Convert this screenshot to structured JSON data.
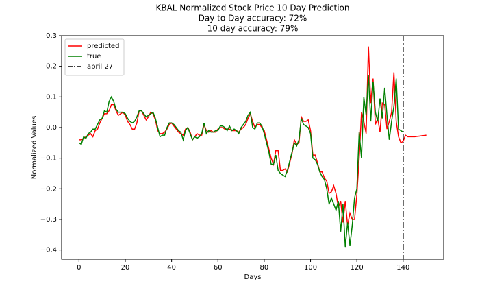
{
  "chart_data": {
    "type": "line",
    "title": "KBAL Normalized Stock Price 10 Day Prediction",
    "subtitle": [
      "Day to Day accuracy: 72%",
      "10 day accuracy: 79%"
    ],
    "x_label": "Days",
    "y_label": "Normalized Values",
    "xlim": [
      -7.5,
      157.5
    ],
    "ylim": [
      -0.43,
      0.3
    ],
    "xticks": [
      0,
      20,
      40,
      60,
      80,
      100,
      120,
      140
    ],
    "yticks": [
      {
        "value": -0.4,
        "label": "−0.4"
      },
      {
        "value": -0.3,
        "label": "−0.3"
      },
      {
        "value": -0.2,
        "label": "−0.2"
      },
      {
        "value": -0.1,
        "label": "−0.1"
      },
      {
        "value": 0,
        "label": "0.0"
      },
      0.1,
      0.2,
      0.3
    ],
    "grid": false,
    "legend": "upper left",
    "x": [
      0,
      1,
      2,
      3,
      4,
      5,
      6,
      7,
      8,
      9,
      10,
      11,
      12,
      13,
      14,
      15,
      16,
      17,
      18,
      19,
      20,
      21,
      22,
      23,
      24,
      25,
      26,
      27,
      28,
      29,
      30,
      31,
      32,
      33,
      34,
      35,
      36,
      37,
      38,
      39,
      40,
      41,
      42,
      43,
      44,
      45,
      46,
      47,
      48,
      49,
      50,
      51,
      52,
      53,
      54,
      55,
      56,
      57,
      58,
      59,
      60,
      61,
      62,
      63,
      64,
      65,
      66,
      67,
      68,
      69,
      70,
      71,
      72,
      73,
      74,
      75,
      76,
      77,
      78,
      79,
      80,
      81,
      82,
      83,
      84,
      85,
      86,
      87,
      88,
      89,
      90,
      91,
      92,
      93,
      94,
      95,
      96,
      97,
      98,
      99,
      100,
      101,
      102,
      103,
      104,
      105,
      106,
      107,
      108,
      109,
      110,
      111,
      112,
      113,
      114,
      115,
      116,
      117,
      118,
      119,
      120,
      121,
      122,
      123,
      124,
      125,
      126,
      127,
      128,
      129,
      130,
      131,
      132,
      133,
      134,
      135,
      136,
      137,
      138,
      139,
      140,
      141,
      142,
      143,
      144,
      145,
      146,
      147,
      148,
      149,
      150
    ],
    "series": [
      {
        "name": "predicted",
        "color": "#ff0000",
        "values": [
          -0.04,
          -0.04,
          -0.035,
          -0.03,
          -0.025,
          -0.02,
          -0.03,
          -0.01,
          -0.005,
          0.015,
          0.03,
          0.045,
          0.045,
          0.055,
          0.075,
          0.075,
          0.055,
          0.04,
          0.045,
          0.05,
          0.04,
          0.02,
          0.01,
          -0.005,
          -0.005,
          0.015,
          0.055,
          0.055,
          0.04,
          0.025,
          0.035,
          0.05,
          0.045,
          0.025,
          -0.01,
          -0.02,
          -0.02,
          -0.015,
          -0.005,
          0.01,
          0.015,
          0.005,
          -0.005,
          -0.015,
          -0.02,
          -0.025,
          -0.005,
          0.0,
          -0.015,
          -0.04,
          -0.03,
          -0.02,
          -0.025,
          -0.025,
          0.01,
          -0.01,
          -0.015,
          -0.01,
          -0.015,
          -0.015,
          -0.005,
          0.0,
          0.0,
          -0.005,
          -0.005,
          -0.005,
          -0.01,
          -0.01,
          -0.01,
          -0.015,
          -0.005,
          0.0,
          0.01,
          0.03,
          0.045,
          0.02,
          0.0,
          0.01,
          0.01,
          0.0,
          -0.01,
          -0.04,
          -0.07,
          -0.1,
          -0.12,
          -0.075,
          -0.075,
          -0.14,
          -0.14,
          -0.135,
          -0.145,
          -0.115,
          -0.085,
          -0.04,
          -0.055,
          -0.05,
          0.035,
          0.02,
          0.02,
          0.025,
          -0.01,
          -0.09,
          -0.09,
          -0.115,
          -0.145,
          -0.145,
          -0.165,
          -0.175,
          -0.215,
          -0.21,
          -0.19,
          -0.215,
          -0.26,
          -0.24,
          -0.31,
          -0.24,
          -0.32,
          -0.28,
          -0.3,
          -0.3,
          -0.22,
          -0.1,
          0.05,
          0.02,
          -0.02,
          0.265,
          0.08,
          0.16,
          0.01,
          0.03,
          -0.015,
          0.08,
          0.075,
          -0.005,
          0.02,
          0.05,
          0.18,
          0.02,
          -0.03,
          -0.05,
          -0.045,
          -0.025,
          -0.03,
          -0.03,
          -0.03,
          -0.03,
          -0.029,
          -0.028,
          -0.027,
          -0.026,
          -0.025
        ]
      },
      {
        "name": "true",
        "color": "#008000",
        "values": [
          -0.05,
          -0.055,
          -0.03,
          -0.035,
          -0.02,
          -0.015,
          -0.005,
          -0.005,
          0.01,
          0.025,
          0.03,
          0.055,
          0.05,
          0.085,
          0.1,
          0.085,
          0.06,
          0.05,
          0.05,
          0.05,
          0.045,
          0.03,
          0.02,
          0.015,
          0.02,
          0.035,
          0.055,
          0.055,
          0.045,
          0.035,
          0.04,
          0.045,
          0.05,
          0.03,
          0.0,
          -0.03,
          -0.025,
          -0.025,
          0.0,
          0.015,
          0.015,
          0.01,
          0.0,
          -0.01,
          -0.015,
          -0.04,
          -0.01,
          0.0,
          -0.02,
          -0.04,
          -0.03,
          -0.035,
          -0.03,
          -0.02,
          0.015,
          -0.02,
          -0.01,
          -0.015,
          -0.015,
          -0.01,
          -0.01,
          0.005,
          0.005,
          0.0,
          -0.01,
          0.005,
          -0.01,
          -0.005,
          -0.01,
          -0.02,
          0.0,
          0.01,
          0.02,
          0.04,
          0.05,
          0.0,
          -0.005,
          0.015,
          0.015,
          0.005,
          -0.02,
          -0.05,
          -0.08,
          -0.12,
          -0.12,
          -0.09,
          -0.14,
          -0.15,
          -0.155,
          -0.16,
          -0.14,
          -0.11,
          -0.08,
          -0.05,
          -0.06,
          -0.04,
          0.03,
          0.01,
          0.005,
          0.0,
          -0.02,
          -0.1,
          -0.105,
          -0.12,
          -0.145,
          -0.16,
          -0.17,
          -0.2,
          -0.25,
          -0.23,
          -0.25,
          -0.27,
          -0.24,
          -0.34,
          -0.25,
          -0.39,
          -0.31,
          -0.385,
          -0.32,
          -0.23,
          -0.2,
          -0.015,
          -0.1,
          0.1,
          0.04,
          0.17,
          0.02,
          0.15,
          0.05,
          0.02,
          0.095,
          0.03,
          0.13,
          0.04,
          -0.04,
          0.02,
          0.07,
          0.16,
          -0.005,
          -0.01,
          -0.015,
          null,
          null,
          null,
          null,
          null,
          null,
          null,
          null,
          null,
          null
        ]
      }
    ],
    "vlines": [
      {
        "name": "april 27",
        "x": 140,
        "color": "#000000"
      }
    ]
  }
}
